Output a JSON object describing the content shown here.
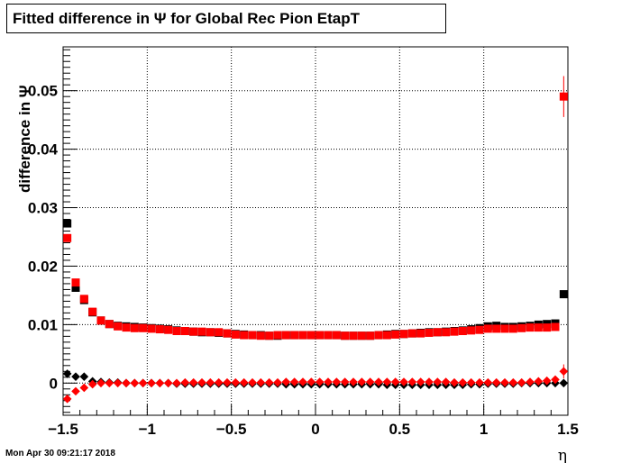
{
  "title": "Fitted difference in  Ψ  for Global Rec Pion EtapT",
  "timestamp": "Mon Apr 30 09:21:17 2018",
  "chart_data": {
    "type": "scatter",
    "xlabel": "η",
    "ylabel": "difference in  Ψ",
    "xlim": [
      -1.5,
      1.5
    ],
    "ylim": [
      -0.0055,
      0.0575
    ],
    "grid": true,
    "x_ticks": [
      "−1.5",
      "−1",
      "−0.5",
      "0",
      "0.5",
      "1",
      "1.5"
    ],
    "x_tick_values": [
      -1.5,
      -1,
      -0.5,
      0,
      0.5,
      1,
      1.5
    ],
    "y_ticks": [
      "0",
      "0.01",
      "0.02",
      "0.03",
      "0.04",
      "0.05"
    ],
    "y_tick_values": [
      0,
      0.01,
      0.02,
      0.03,
      0.04,
      0.05
    ],
    "x": [
      -1.475,
      -1.425,
      -1.375,
      -1.325,
      -1.275,
      -1.225,
      -1.175,
      -1.125,
      -1.075,
      -1.025,
      -0.975,
      -0.925,
      -0.875,
      -0.825,
      -0.775,
      -0.725,
      -0.675,
      -0.625,
      -0.575,
      -0.525,
      -0.475,
      -0.425,
      -0.375,
      -0.325,
      -0.275,
      -0.225,
      -0.175,
      -0.125,
      -0.075,
      -0.025,
      0.025,
      0.075,
      0.125,
      0.175,
      0.225,
      0.275,
      0.325,
      0.375,
      0.425,
      0.475,
      0.525,
      0.575,
      0.625,
      0.675,
      0.725,
      0.775,
      0.825,
      0.875,
      0.925,
      0.975,
      1.025,
      1.075,
      1.125,
      1.175,
      1.225,
      1.275,
      1.325,
      1.375,
      1.425,
      1.475
    ],
    "series": [
      {
        "color": "#000000",
        "marker": "square",
        "values": [
          0.0273,
          0.0163,
          0.0142,
          0.0121,
          0.0107,
          0.0101,
          0.0098,
          0.0097,
          0.0096,
          0.0095,
          0.0094,
          0.0093,
          0.0092,
          0.009,
          0.0089,
          0.0088,
          0.0087,
          0.0087,
          0.0086,
          0.0085,
          0.0084,
          0.0083,
          0.0082,
          0.0082,
          0.0081,
          0.0081,
          0.0082,
          0.0082,
          0.0082,
          0.0082,
          0.0082,
          0.0082,
          0.0082,
          0.0081,
          0.0081,
          0.0081,
          0.0081,
          0.0082,
          0.0083,
          0.0084,
          0.0084,
          0.0085,
          0.0086,
          0.0087,
          0.0087,
          0.0088,
          0.0089,
          0.009,
          0.0092,
          0.0094,
          0.0097,
          0.0098,
          0.0096,
          0.0096,
          0.0097,
          0.0098,
          0.01,
          0.0101,
          0.0102,
          0.0152
        ]
      },
      {
        "color": "#ff0000",
        "marker": "square",
        "values": [
          0.0248,
          0.0172,
          0.0144,
          0.0122,
          0.0107,
          0.0101,
          0.0097,
          0.0095,
          0.0094,
          0.0094,
          0.0093,
          0.0092,
          0.0091,
          0.0089,
          0.0089,
          0.0088,
          0.0088,
          0.0087,
          0.0087,
          0.0085,
          0.0083,
          0.0082,
          0.0082,
          0.0081,
          0.0081,
          0.0082,
          0.0082,
          0.0082,
          0.0082,
          0.0082,
          0.0082,
          0.0082,
          0.0082,
          0.0081,
          0.0081,
          0.0081,
          0.0081,
          0.0082,
          0.0082,
          0.0083,
          0.0084,
          0.0085,
          0.0085,
          0.0086,
          0.0087,
          0.0087,
          0.0088,
          0.0089,
          0.009,
          0.0091,
          0.0093,
          0.0093,
          0.0093,
          0.0093,
          0.0094,
          0.0095,
          0.0095,
          0.0095,
          0.0096,
          0.049
        ],
        "errors": [
          0,
          0,
          0,
          0,
          0,
          0,
          0,
          0,
          0,
          0,
          0,
          0,
          0,
          0,
          0,
          0,
          0,
          0,
          0,
          0,
          0,
          0,
          0,
          0,
          0,
          0,
          0,
          0,
          0,
          0,
          0,
          0,
          0,
          0,
          0,
          0,
          0,
          0,
          0,
          0,
          0,
          0,
          0,
          0,
          0,
          0,
          0,
          0,
          0,
          0,
          0,
          0,
          0,
          0,
          0,
          0,
          0,
          0,
          0,
          0.0035
        ]
      },
      {
        "color": "#000000",
        "marker": "diamond",
        "values": [
          0.0016,
          0.0011,
          0.0011,
          0.0003,
          0.0002,
          0.0001,
          0.0001,
          0.0,
          0.0,
          0.0,
          0.0,
          0.0,
          0.0,
          -0.0001,
          -0.0001,
          -0.0001,
          -0.0001,
          -0.0001,
          -0.0001,
          -0.0001,
          -0.0001,
          -0.0001,
          -0.0001,
          -0.0001,
          -0.0001,
          -0.0001,
          -0.0002,
          -0.0002,
          -0.0002,
          -0.0002,
          -0.0002,
          -0.0002,
          -0.0002,
          -0.0002,
          -0.0002,
          -0.0002,
          -0.0002,
          -0.0002,
          -0.0003,
          -0.0003,
          -0.0003,
          -0.0003,
          -0.0003,
          -0.0003,
          -0.0003,
          -0.0003,
          -0.0003,
          -0.0003,
          -0.0002,
          -0.0002,
          -0.0001,
          -0.0001,
          -0.0001,
          -0.0001,
          0.0,
          0.0,
          0.0,
          0.0,
          0.0,
          0.0
        ]
      },
      {
        "color": "#ff0000",
        "marker": "diamond",
        "values": [
          -0.0027,
          -0.0014,
          -0.0008,
          -0.0002,
          0.0,
          0.0,
          0.0,
          0.0,
          0.0,
          0.0,
          0.0,
          0.0,
          0.0,
          0.0,
          0.0001,
          0.0001,
          0.0001,
          0.0001,
          0.0001,
          0.0001,
          0.0001,
          0.0001,
          0.0001,
          0.0001,
          0.0001,
          0.0001,
          0.0002,
          0.0002,
          0.0002,
          0.0002,
          0.0002,
          0.0002,
          0.0002,
          0.0002,
          0.0002,
          0.0002,
          0.0002,
          0.0002,
          0.0002,
          0.0002,
          0.0002,
          0.0002,
          0.0002,
          0.0002,
          0.0002,
          0.0002,
          0.0001,
          0.0001,
          0.0001,
          0.0001,
          0.0001,
          0.0001,
          0.0001,
          0.0001,
          0.0001,
          0.0002,
          0.0003,
          0.0004,
          0.0006,
          0.002
        ],
        "errors": [
          0,
          0,
          0,
          0,
          0,
          0,
          0,
          0,
          0,
          0,
          0,
          0,
          0,
          0,
          0,
          0,
          0,
          0,
          0,
          0,
          0,
          0,
          0,
          0,
          0,
          0,
          0,
          0,
          0,
          0,
          0,
          0,
          0,
          0,
          0,
          0,
          0,
          0,
          0,
          0,
          0,
          0,
          0,
          0,
          0,
          0,
          0,
          0,
          0,
          0,
          0,
          0,
          0,
          0,
          0,
          0,
          0,
          0,
          0,
          0.0012
        ]
      }
    ]
  }
}
